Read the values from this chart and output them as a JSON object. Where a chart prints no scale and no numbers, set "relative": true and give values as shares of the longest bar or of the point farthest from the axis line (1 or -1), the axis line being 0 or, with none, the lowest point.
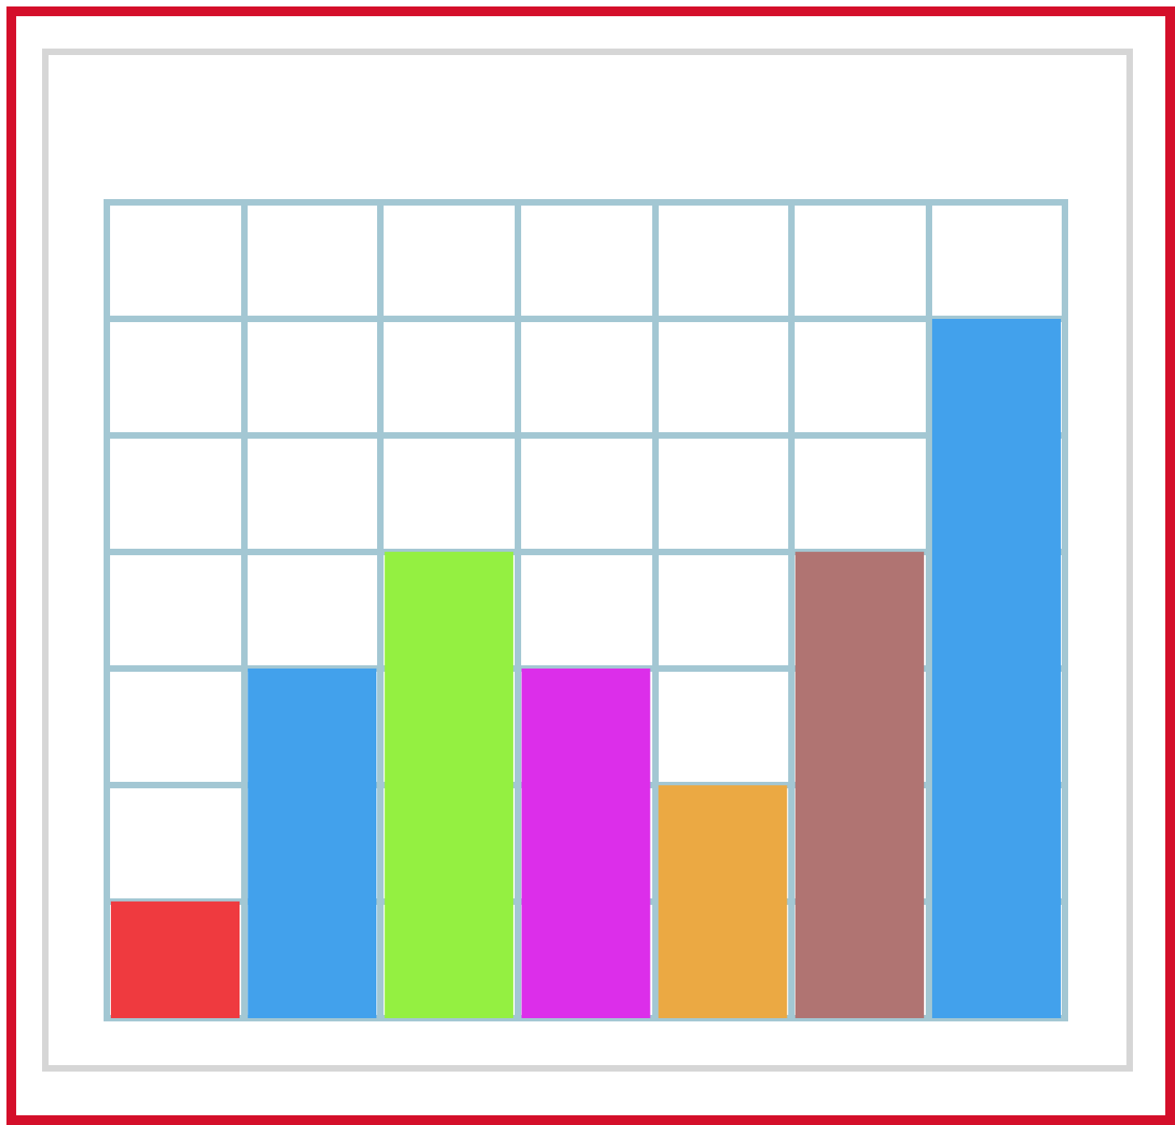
{
  "chart_data": {
    "type": "bar",
    "relative": true,
    "grid": true,
    "categories": [
      null,
      null,
      null,
      null,
      null,
      null,
      null
    ],
    "values": [
      0.167,
      0.5,
      0.667,
      0.5,
      0.333,
      0.667,
      1
    ],
    "colors": [
      "#ef3a3f",
      "#42a1ec",
      "#94f041",
      "#dc2eea",
      "#eba943",
      "#b07472",
      "#42a1ec"
    ]
  }
}
